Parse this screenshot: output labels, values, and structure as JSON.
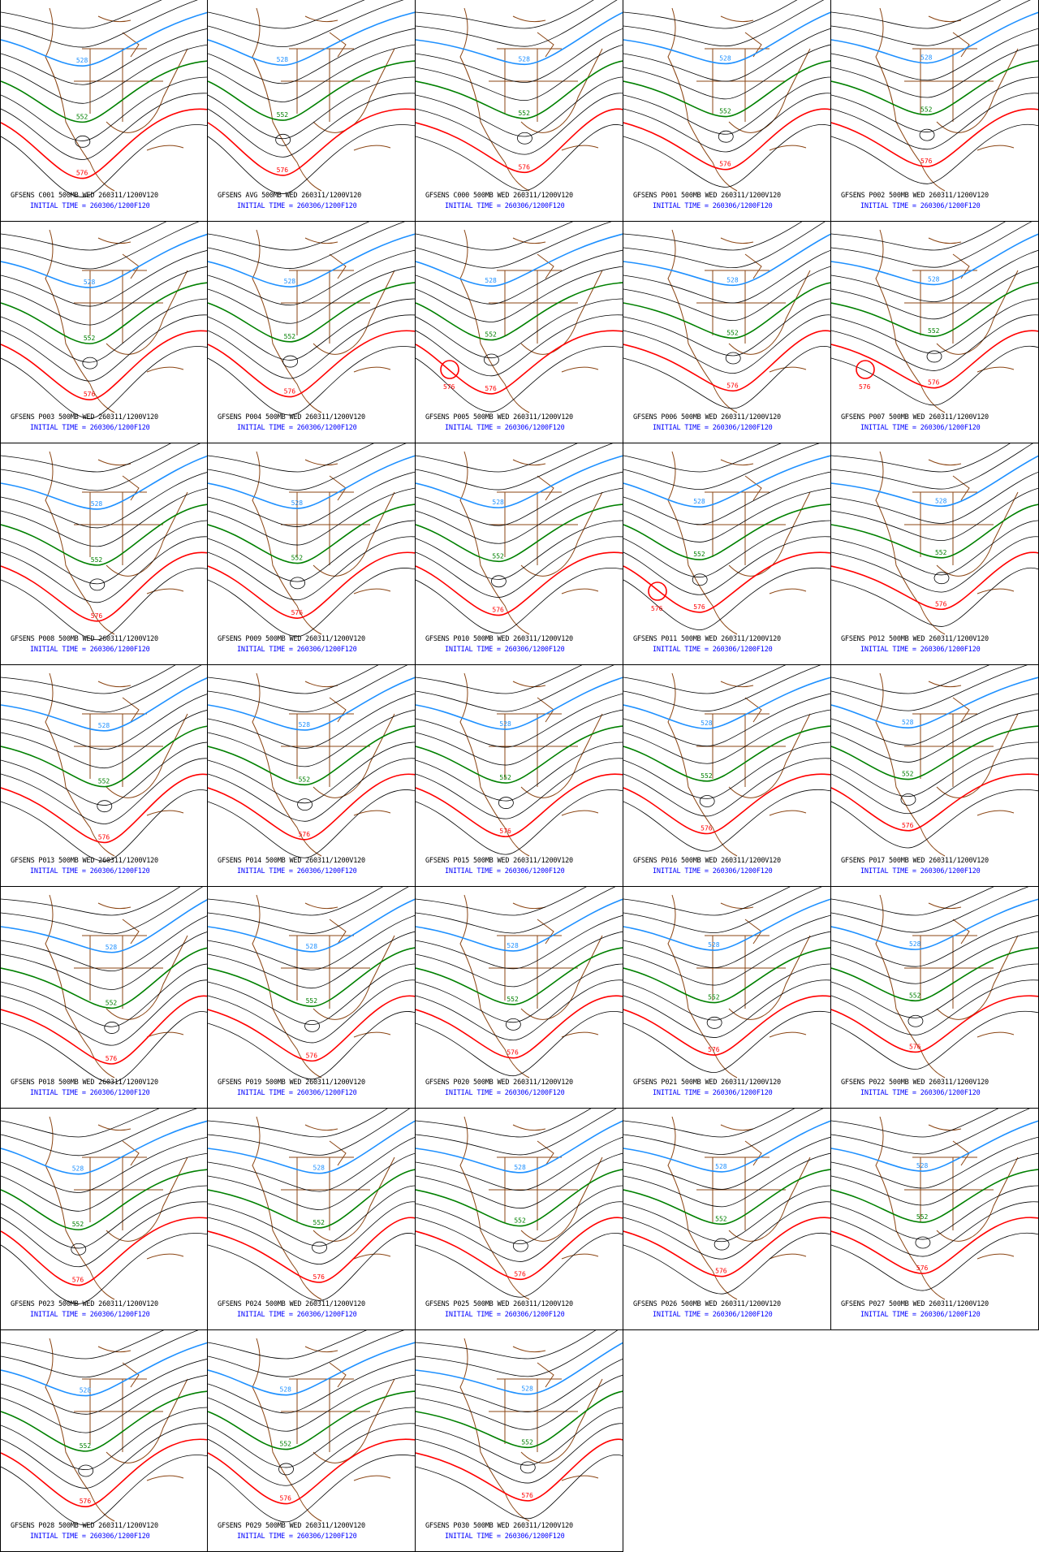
{
  "title_suffix": "500MB WED 260311/1200V120",
  "initial_time": "INITIAL TIME = 260306/1200F120",
  "contour_labels": {
    "blue": "528",
    "green": "552",
    "red": "576"
  },
  "colors": {
    "coast": "#8b4513",
    "contour": "#000000",
    "c528": "#1e90ff",
    "c552": "#008000",
    "c576": "#ff0000",
    "caption2": "#0000ff"
  },
  "panels": [
    {
      "member": "C001",
      "caption": "GFSENS C001 500MB WED 260311/1200V120"
    },
    {
      "member": "AVG",
      "caption": "GFSENS AVG 500MB WED 260311/1200V120"
    },
    {
      "member": "C000",
      "caption": "GFSENS C000 500MB WED 260311/1200V120"
    },
    {
      "member": "P001",
      "caption": "GFSENS P001 500MB WED 260311/1200V120"
    },
    {
      "member": "P002",
      "caption": "GFSENS P002 500MB WED 260311/1200V120"
    },
    {
      "member": "P003",
      "caption": "GFSENS P003 500MB WED 260311/1200V120"
    },
    {
      "member": "P004",
      "caption": "GFSENS P004 500MB WED 260311/1200V120"
    },
    {
      "member": "P005",
      "caption": "GFSENS P005 500MB WED 260311/1200V120",
      "cutoff": true
    },
    {
      "member": "P006",
      "caption": "GFSENS P006 500MB WED 260311/1200V120"
    },
    {
      "member": "P007",
      "caption": "GFSENS P007 500MB WED 260311/1200V120",
      "cutoff": true
    },
    {
      "member": "P008",
      "caption": "GFSENS P008 500MB WED 260311/1200V120"
    },
    {
      "member": "P009",
      "caption": "GFSENS P009 500MB WED 260311/1200V120"
    },
    {
      "member": "P010",
      "caption": "GFSENS P010 500MB WED 260311/1200V120"
    },
    {
      "member": "P011",
      "caption": "GFSENS P011 500MB WED 260311/1200V120",
      "cutoff": true
    },
    {
      "member": "P012",
      "caption": "GFSENS P012 500MB WED 260311/1200V120"
    },
    {
      "member": "P013",
      "caption": "GFSENS P013 500MB WED 260311/1200V120"
    },
    {
      "member": "P014",
      "caption": "GFSENS P014 500MB WED 260311/1200V120"
    },
    {
      "member": "P015",
      "caption": "GFSENS P015 500MB WED 260311/1200V120"
    },
    {
      "member": "P016",
      "caption": "GFSENS P016 500MB WED 260311/1200V120"
    },
    {
      "member": "P017",
      "caption": "GFSENS P017 500MB WED 260311/1200V120"
    },
    {
      "member": "P018",
      "caption": "GFSENS P018 500MB WED 260311/1200V120"
    },
    {
      "member": "P019",
      "caption": "GFSENS P019 500MB WED 260311/1200V120"
    },
    {
      "member": "P020",
      "caption": "GFSENS P020 500MB WED 260311/1200V120"
    },
    {
      "member": "P021",
      "caption": "GFSENS P021 500MB WED 260311/1200V120"
    },
    {
      "member": "P022",
      "caption": "GFSENS P022 500MB WED 260311/1200V120"
    },
    {
      "member": "P023",
      "caption": "GFSENS P023 500MB WED 260311/1200V120"
    },
    {
      "member": "P024",
      "caption": "GFSENS P024 500MB WED 260311/1200V120"
    },
    {
      "member": "P025",
      "caption": "GFSENS P025 500MB WED 260311/1200V120"
    },
    {
      "member": "P026",
      "caption": "GFSENS P026 500MB WED 260311/1200V120"
    },
    {
      "member": "P027",
      "caption": "GFSENS P027 500MB WED 260311/1200V120"
    },
    {
      "member": "P028",
      "caption": "GFSENS P028 500MB WED 260311/1200V120"
    },
    {
      "member": "P029",
      "caption": "GFSENS P029 500MB WED 260311/1200V120"
    },
    {
      "member": "P030",
      "caption": "GFSENS P030 500MB WED 260311/1200V120"
    }
  ]
}
